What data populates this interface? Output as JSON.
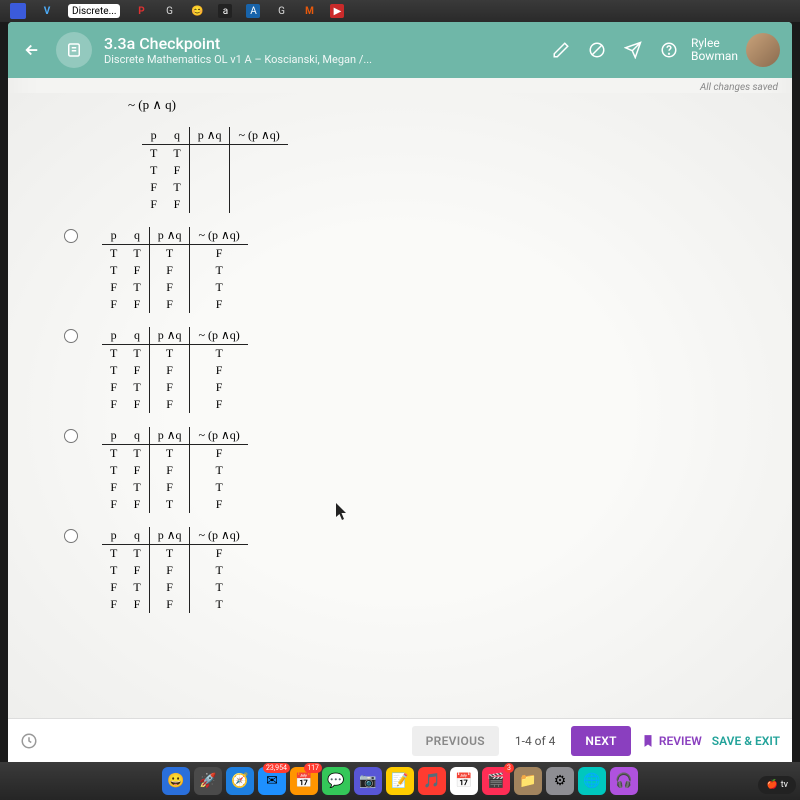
{
  "menubar": {
    "items": [
      "V",
      "Discrete...",
      "P",
      "G",
      "😊",
      "a",
      "A",
      "G",
      "M",
      "▶"
    ]
  },
  "header": {
    "title": "3.3a Checkpoint",
    "subtitle": "Discrete Mathematics OL v1 A – Koscianski, Megan /...",
    "user_line1": "Rylee",
    "user_line2": "Bowman"
  },
  "saved_text": "All changes saved",
  "expression": "~ (p ∧ q)",
  "table_headers": [
    "p",
    "q",
    "p ∧q",
    "~ (p ∧q)"
  ],
  "options": [
    {
      "rows": [
        [
          "T",
          "T",
          "",
          ""
        ],
        [
          "T",
          "F",
          "",
          ""
        ],
        [
          "F",
          "T",
          "",
          ""
        ],
        [
          "F",
          "F",
          "",
          ""
        ]
      ]
    },
    {
      "rows": [
        [
          "T",
          "T",
          "T",
          "F"
        ],
        [
          "T",
          "F",
          "F",
          "T"
        ],
        [
          "F",
          "T",
          "F",
          "T"
        ],
        [
          "F",
          "F",
          "F",
          "F"
        ]
      ]
    },
    {
      "rows": [
        [
          "T",
          "T",
          "T",
          "T"
        ],
        [
          "T",
          "F",
          "F",
          "F"
        ],
        [
          "F",
          "T",
          "F",
          "F"
        ],
        [
          "F",
          "F",
          "F",
          "F"
        ]
      ]
    },
    {
      "rows": [
        [
          "T",
          "T",
          "T",
          "F"
        ],
        [
          "T",
          "F",
          "F",
          "T"
        ],
        [
          "F",
          "T",
          "F",
          "T"
        ],
        [
          "F",
          "F",
          "T",
          "F"
        ]
      ]
    },
    {
      "rows": [
        [
          "T",
          "T",
          "T",
          "F"
        ],
        [
          "T",
          "F",
          "F",
          "T"
        ],
        [
          "F",
          "T",
          "F",
          "T"
        ],
        [
          "F",
          "F",
          "F",
          "T"
        ]
      ]
    }
  ],
  "bottom": {
    "previous": "PREVIOUS",
    "indicator": "1-4 of 4",
    "next": "NEXT",
    "review": "REVIEW",
    "save": "SAVE & EXIT"
  },
  "dock": {
    "items": [
      {
        "bg": "#2a6fdb",
        "glyph": "😀"
      },
      {
        "bg": "#4a4a4a",
        "glyph": "🚀"
      },
      {
        "bg": "#1e7fe0",
        "glyph": "🧭"
      },
      {
        "bg": "#1e90ff",
        "glyph": "✉︎",
        "badge": "23,954"
      },
      {
        "bg": "#ff9500",
        "glyph": "📅",
        "badge": "117"
      },
      {
        "bg": "#34c759",
        "glyph": "💬"
      },
      {
        "bg": "#5856d6",
        "glyph": "📷"
      },
      {
        "bg": "#ffcc00",
        "glyph": "📝"
      },
      {
        "bg": "#ff3b30",
        "glyph": "🎵"
      },
      {
        "bg": "#ffffff",
        "glyph": "📅"
      },
      {
        "bg": "#ff2d55",
        "glyph": "🎬",
        "badge": "3"
      },
      {
        "bg": "#a2845e",
        "glyph": "📁"
      },
      {
        "bg": "#8e8e93",
        "glyph": "⚙︎"
      },
      {
        "bg": "#00c7be",
        "glyph": "🌐"
      },
      {
        "bg": "#af52de",
        "glyph": "🎧"
      }
    ],
    "tv_label": "tv"
  },
  "colors": {
    "header_bg": "#6fb7a8",
    "next_btn": "#8a3fbf",
    "review_color": "#8a3fbf",
    "save_color": "#23a39a"
  }
}
